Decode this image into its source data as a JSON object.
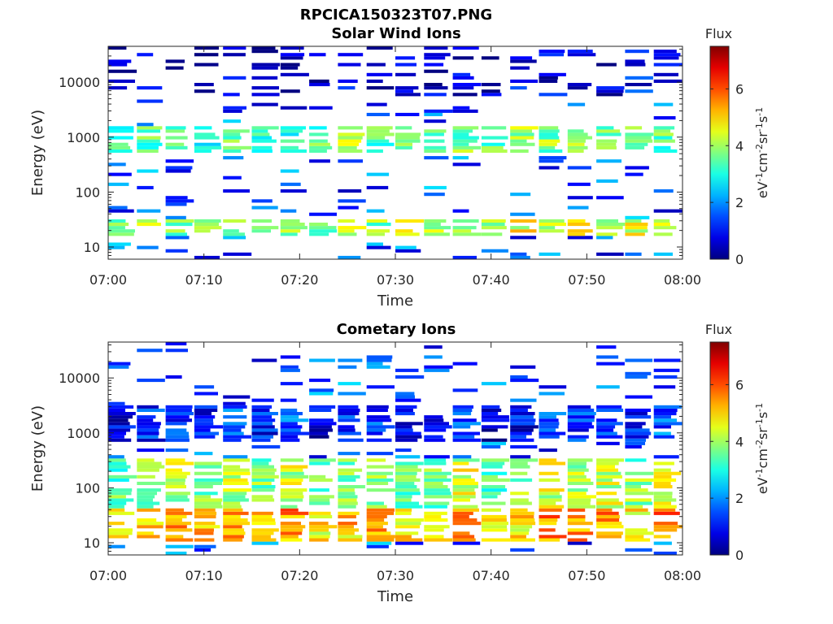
{
  "figure": {
    "title": "RPCICA150323T07.PNG"
  },
  "chart_data": [
    {
      "type": "heatmap",
      "title": "Solar Wind Ions",
      "xlabel": "Time",
      "ylabel": "Energy (eV)",
      "y_scale": "log",
      "ylim": [
        6,
        45000
      ],
      "xlim": [
        "07:00",
        "08:00"
      ],
      "x_ticks": [
        "07:00",
        "07:10",
        "07:20",
        "07:30",
        "07:40",
        "07:50",
        "08:00"
      ],
      "y_ticks": [
        "10",
        "100",
        "1000",
        "10000"
      ],
      "colorbar": {
        "label": "Flux",
        "unit_label": "eV-1cm-2sr-1s-1",
        "range": [
          0,
          7.5
        ],
        "ticks": [
          "0",
          "2",
          "4",
          "6"
        ],
        "colormap": "jet"
      },
      "grid": false,
      "time_bins": 20,
      "dominant_bands": [
        {
          "energy_range": [
            500,
            1500
          ],
          "flux": 3.5
        },
        {
          "energy_range": [
            15,
            30
          ],
          "flux": 4.0
        },
        {
          "energy_range": [
            5000,
            40000
          ],
          "flux": 0.5
        }
      ],
      "seed": 7,
      "profile": "sw"
    },
    {
      "type": "heatmap",
      "title": "Cometary Ions",
      "xlabel": "Time",
      "ylabel": "Energy (eV)",
      "y_scale": "log",
      "ylim": [
        6,
        45000
      ],
      "xlim": [
        "07:00",
        "08:00"
      ],
      "x_ticks": [
        "07:00",
        "07:10",
        "07:20",
        "07:30",
        "07:40",
        "07:50",
        "08:00"
      ],
      "y_ticks": [
        "10",
        "100",
        "1000",
        "10000"
      ],
      "colorbar": {
        "label": "Flux",
        "unit_label": "eV-1cm-2sr-1s-1",
        "range": [
          0,
          7.5
        ],
        "ticks": [
          "0",
          "2",
          "4",
          "6"
        ],
        "colormap": "jet"
      },
      "grid": false,
      "time_bins": 20,
      "dominant_bands": [
        {
          "energy_range": [
            10,
            40
          ],
          "flux": 5.0
        },
        {
          "energy_range": [
            40,
            300
          ],
          "flux": 3.8
        },
        {
          "energy_range": [
            600,
            3000
          ],
          "flux": 1.0
        }
      ],
      "seed": 11,
      "profile": "com"
    }
  ]
}
